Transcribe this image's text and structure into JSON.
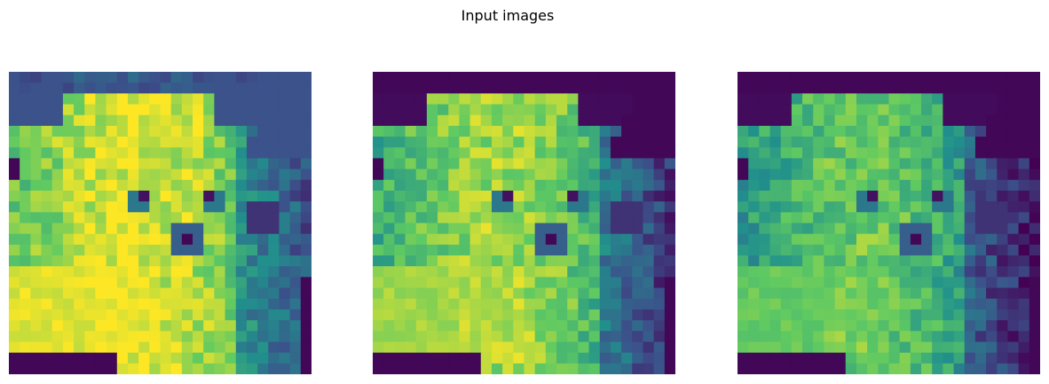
{
  "title": "Input images"
}
